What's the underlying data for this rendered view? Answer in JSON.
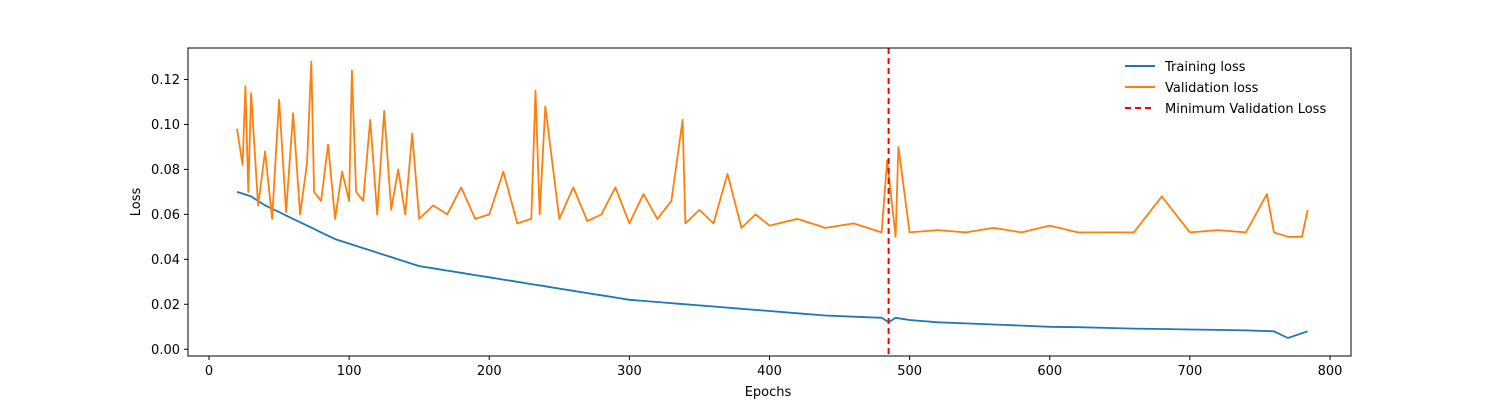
{
  "chart_data": {
    "type": "line",
    "title": "",
    "xlabel": "Epochs",
    "ylabel": "Loss",
    "xlim": [
      -15,
      815
    ],
    "ylim": [
      -0.003,
      0.134
    ],
    "xticks": [
      0,
      100,
      200,
      300,
      400,
      500,
      600,
      700,
      800
    ],
    "yticks": [
      0.0,
      0.02,
      0.04,
      0.06,
      0.08,
      0.1,
      0.12
    ],
    "ytick_labels": [
      "0.00",
      "0.02",
      "0.04",
      "0.06",
      "0.08",
      "0.10",
      "0.12"
    ],
    "grid": false,
    "legend_position": "top-right",
    "series": [
      {
        "name": "Training loss",
        "color": "#1f77b4",
        "x": [
          20,
          30,
          40,
          50,
          60,
          70,
          80,
          90,
          100,
          110,
          120,
          130,
          140,
          150,
          160,
          170,
          180,
          190,
          200,
          210,
          220,
          230,
          240,
          250,
          260,
          270,
          280,
          290,
          300,
          320,
          340,
          360,
          380,
          400,
          420,
          440,
          460,
          480,
          485,
          490,
          500,
          520,
          540,
          560,
          580,
          600,
          620,
          640,
          660,
          680,
          700,
          720,
          740,
          760,
          770,
          784
        ],
        "y": [
          0.07,
          0.068,
          0.064,
          0.061,
          0.058,
          0.055,
          0.052,
          0.049,
          0.047,
          0.045,
          0.043,
          0.041,
          0.039,
          0.037,
          0.036,
          0.035,
          0.034,
          0.033,
          0.032,
          0.031,
          0.03,
          0.029,
          0.028,
          0.027,
          0.026,
          0.025,
          0.024,
          0.023,
          0.022,
          0.021,
          0.02,
          0.019,
          0.018,
          0.017,
          0.016,
          0.015,
          0.0145,
          0.014,
          0.012,
          0.014,
          0.013,
          0.012,
          0.0115,
          0.011,
          0.0105,
          0.01,
          0.0098,
          0.0095,
          0.0092,
          0.009,
          0.0088,
          0.0086,
          0.0084,
          0.008,
          0.005,
          0.008
        ]
      },
      {
        "name": "Validation loss",
        "color": "#ff7f0e",
        "x": [
          20,
          24,
          26,
          28,
          30,
          35,
          40,
          45,
          50,
          55,
          60,
          65,
          70,
          73,
          75,
          80,
          85,
          90,
          95,
          100,
          102,
          105,
          110,
          115,
          120,
          125,
          130,
          135,
          140,
          145,
          150,
          160,
          170,
          180,
          190,
          200,
          210,
          220,
          230,
          233,
          236,
          240,
          250,
          260,
          270,
          280,
          290,
          300,
          310,
          320,
          330,
          338,
          340,
          350,
          360,
          370,
          380,
          390,
          400,
          420,
          440,
          460,
          480,
          484,
          490,
          492,
          500,
          520,
          540,
          560,
          580,
          600,
          620,
          640,
          660,
          680,
          700,
          720,
          740,
          755,
          760,
          770,
          780,
          784
        ],
        "y": [
          0.098,
          0.082,
          0.117,
          0.07,
          0.114,
          0.064,
          0.088,
          0.058,
          0.111,
          0.061,
          0.105,
          0.06,
          0.083,
          0.128,
          0.07,
          0.066,
          0.091,
          0.058,
          0.079,
          0.066,
          0.124,
          0.07,
          0.066,
          0.102,
          0.06,
          0.106,
          0.062,
          0.08,
          0.06,
          0.096,
          0.058,
          0.064,
          0.06,
          0.072,
          0.058,
          0.06,
          0.079,
          0.056,
          0.058,
          0.115,
          0.06,
          0.108,
          0.058,
          0.072,
          0.057,
          0.06,
          0.072,
          0.056,
          0.069,
          0.058,
          0.066,
          0.102,
          0.056,
          0.062,
          0.056,
          0.078,
          0.054,
          0.06,
          0.055,
          0.058,
          0.054,
          0.056,
          0.052,
          0.084,
          0.05,
          0.09,
          0.052,
          0.053,
          0.052,
          0.054,
          0.052,
          0.055,
          0.052,
          0.052,
          0.052,
          0.068,
          0.052,
          0.053,
          0.052,
          0.069,
          0.052,
          0.05,
          0.05,
          0.062
        ]
      }
    ],
    "vline": {
      "name": "Minimum Validation Loss",
      "x": 485,
      "color": "#ff0000",
      "style": "dashed"
    }
  }
}
